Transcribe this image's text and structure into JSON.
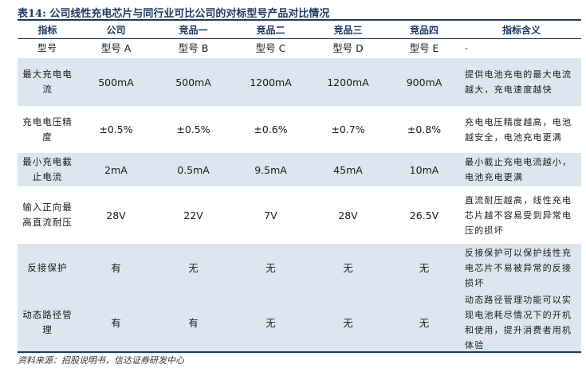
{
  "caption": {
    "label": "表14:",
    "text": "公司线性充电芯片与同行业可比公司的对标型号产品对比情况"
  },
  "table": {
    "headers": [
      "指标",
      "公司",
      "竞品一",
      "竞品二",
      "竞品三",
      "竞品四",
      "指标含义"
    ],
    "rows": [
      {
        "metric": "型号",
        "values": [
          "型号 A",
          "型号 B",
          "型号 C",
          "型号 D",
          "型号 E"
        ],
        "meaning": "-"
      },
      {
        "metric": "最大充电电流",
        "values": [
          "500mA",
          "500mA",
          "1200mA",
          "1200mA",
          "900mA"
        ],
        "meaning": "提供电池充电的最大电流越大，充电速度越快"
      },
      {
        "metric": "充电电压精度",
        "values": [
          "±0.5%",
          "±0.5%",
          "±0.6%",
          "±0.7%",
          "±0.8%"
        ],
        "meaning": "充电电压精度越高，电池越安全，电池充电更满"
      },
      {
        "metric": "最小充电截止电流",
        "values": [
          "2mA",
          "0.5mA",
          "9.5mA",
          "45mA",
          "10mA"
        ],
        "meaning": "最小截止充电电流越小，电池充电更满"
      },
      {
        "metric": "输入正向最高直流耐压",
        "values": [
          "28V",
          "22V",
          "7V",
          "28V",
          "26.5V"
        ],
        "meaning": "直流耐压越高，线性充电芯片越不容易受到异常电压的损坏"
      },
      {
        "metric": "反接保护",
        "values": [
          "有",
          "无",
          "无",
          "无",
          "无"
        ],
        "meaning": "反接保护可以保护线性充电芯片不易被异常的反接损坏"
      },
      {
        "metric": "动态路径管理",
        "values": [
          "有",
          "有",
          "无",
          "无",
          "无"
        ],
        "meaning": "动态路径管理功能可以实现电池耗尽情况下的开机和使用，提升消费者用机体验"
      }
    ]
  },
  "source": "资料来源：招股说明书，信达证券研发中心"
}
